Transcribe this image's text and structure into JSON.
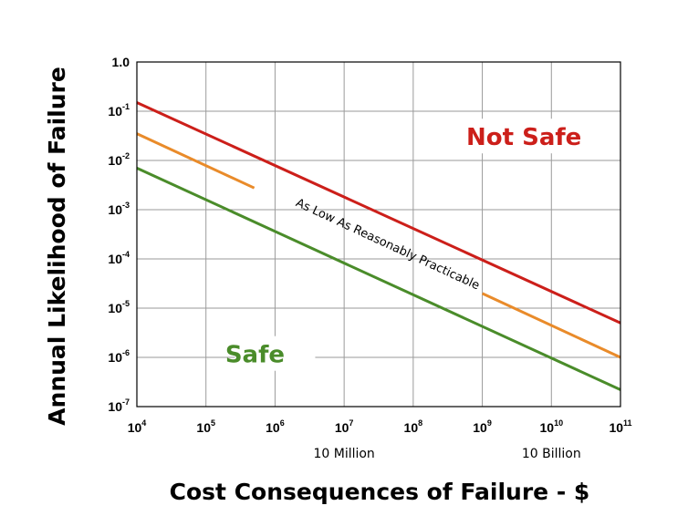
{
  "chart_data": {
    "type": "line",
    "xscale": "log",
    "yscale": "log",
    "xlim": [
      10000,
      100000000000
    ],
    "ylim": [
      1e-07,
      1
    ],
    "grid": true,
    "xlabel": "Cost Consequences of Failure - $",
    "ylabel": "Annual Likelihood of Failure",
    "x_ticks": [
      {
        "base": "10",
        "exp": "4",
        "value": 10000
      },
      {
        "base": "10",
        "exp": "5",
        "value": 100000
      },
      {
        "base": "10",
        "exp": "6",
        "value": 1000000
      },
      {
        "base": "10",
        "exp": "7",
        "value": 10000000
      },
      {
        "base": "10",
        "exp": "8",
        "value": 100000000
      },
      {
        "base": "10",
        "exp": "9",
        "value": 1000000000
      },
      {
        "base": "10",
        "exp": "10",
        "value": 10000000000
      },
      {
        "base": "10",
        "exp": "11",
        "value": 100000000000
      }
    ],
    "y_ticks": [
      {
        "base": "1.0",
        "exp": "",
        "value": 1
      },
      {
        "base": "10",
        "exp": "-1",
        "value": 0.1
      },
      {
        "base": "10",
        "exp": "-2",
        "value": 0.01
      },
      {
        "base": "10",
        "exp": "-3",
        "value": 0.001
      },
      {
        "base": "10",
        "exp": "-4",
        "value": 0.0001
      },
      {
        "base": "10",
        "exp": "-5",
        "value": 1e-05
      },
      {
        "base": "10",
        "exp": "-6",
        "value": 1e-06
      },
      {
        "base": "10",
        "exp": "-7",
        "value": 1e-07
      }
    ],
    "x_sublabels": [
      {
        "text": "10 Million",
        "x": 10000000
      },
      {
        "text": "10 Billion",
        "x": 10000000000
      }
    ],
    "series": [
      {
        "color": "#cc1f1a",
        "points": [
          [
            10000,
            0.15
          ],
          [
            100000000000,
            5e-06
          ]
        ]
      },
      {
        "color": "#e98b2a",
        "points": [
          [
            10000,
            0.035
          ],
          [
            100000000000,
            1e-06
          ]
        ],
        "gap": [
          500000,
          1000000000
        ]
      },
      {
        "color": "#4a8c2a",
        "points": [
          [
            10000,
            0.007
          ],
          [
            100000000000,
            2.2e-07
          ]
        ]
      }
    ],
    "annotations": {
      "not_safe": {
        "text": "Not Safe",
        "color": "#cc1f1a",
        "x": 4000000000,
        "y": 0.03
      },
      "alarp": {
        "text": "As Low As Reasonably Practicable",
        "x": 30000000,
        "y": 0.00017
      },
      "safe": {
        "text": "Safe",
        "color": "#4a8c2a",
        "x": 1000000,
        "y": 1.15e-06
      }
    }
  }
}
